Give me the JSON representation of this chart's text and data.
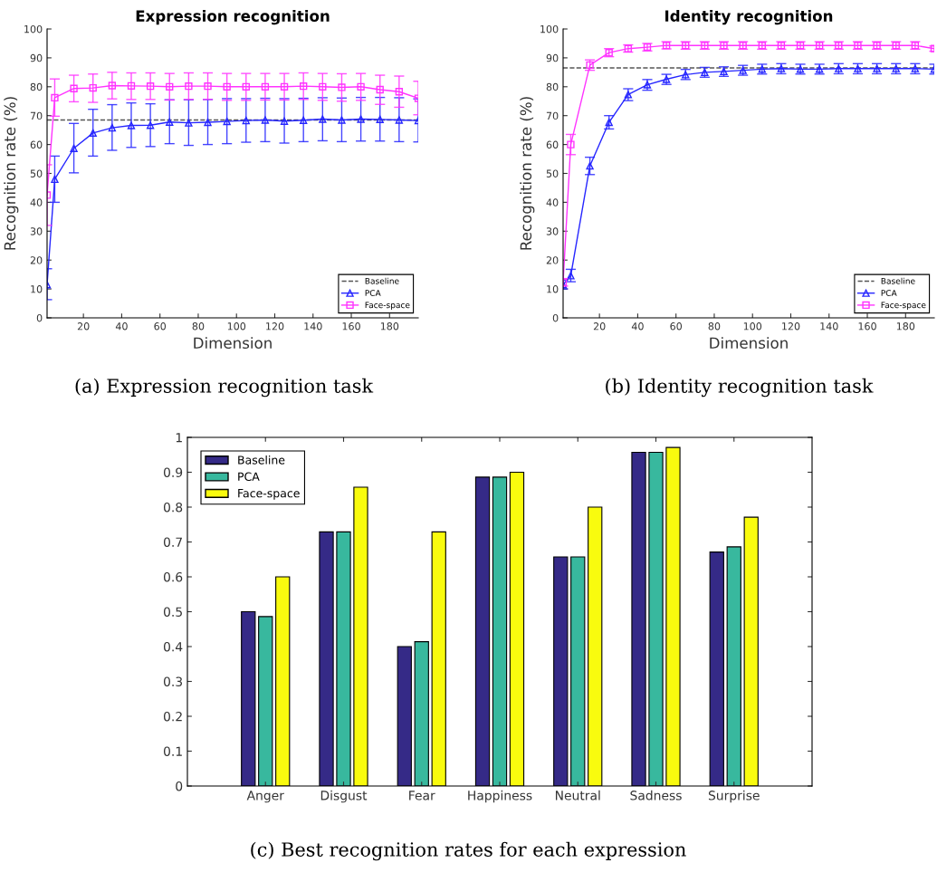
{
  "chart_data": [
    {
      "type": "line",
      "title": "Expression recognition",
      "xlabel": "Dimension",
      "ylabel": "Recognition rate (%)",
      "x": [
        1,
        5,
        15,
        25,
        35,
        45,
        55,
        65,
        75,
        85,
        95,
        105,
        115,
        125,
        135,
        145,
        155,
        165,
        175,
        185,
        195
      ],
      "xlim": [
        1,
        195
      ],
      "xticks": [
        20,
        40,
        60,
        80,
        100,
        120,
        140,
        160,
        180
      ],
      "ylim": [
        0,
        100
      ],
      "yticks": [
        0,
        10,
        20,
        30,
        40,
        50,
        60,
        70,
        80,
        90,
        100
      ],
      "grid": false,
      "legend": "bottom right",
      "annotations": [
        "(a) Expression recognition task"
      ],
      "ref_lines": [
        {
          "axis": "y",
          "value": 68.5,
          "label": "Baseline",
          "color": "#555555",
          "line_style": "dashed"
        }
      ],
      "series": [
        {
          "name": "PCA",
          "color": "#2626ff",
          "line_style": "solid",
          "marker": "triangle",
          "values": [
            11.5,
            48,
            58.7,
            64,
            65.8,
            66.6,
            66.7,
            67.8,
            67.5,
            67.7,
            68,
            68.3,
            68.5,
            68.1,
            68.4,
            68.8,
            68.5,
            68.8,
            68.7,
            68.5,
            68.3
          ],
          "errors": [
            [
              6.3,
              17
            ],
            [
              40,
              56
            ],
            [
              50.2,
              67.3
            ],
            [
              56,
              72.2
            ],
            [
              58,
              73.8
            ],
            [
              59,
              74.4
            ],
            [
              59.3,
              74.1
            ],
            [
              60.3,
              75.5
            ],
            [
              59.7,
              75.5
            ],
            [
              60,
              75.6
            ],
            [
              60.3,
              75.9
            ],
            [
              60.8,
              75.9
            ],
            [
              61,
              76
            ],
            [
              60.5,
              75.9
            ],
            [
              61,
              76
            ],
            [
              61.3,
              76.2
            ],
            [
              61,
              76.1
            ],
            [
              61.2,
              76.3
            ],
            [
              61.2,
              76.3
            ],
            [
              61,
              76.2
            ],
            [
              60.9,
              75.8
            ]
          ]
        },
        {
          "name": "Face-space",
          "color": "#ff33ff",
          "line_style": "solid",
          "marker": "square",
          "values": [
            42.5,
            76.2,
            79.4,
            79.6,
            80.4,
            80.3,
            80.2,
            80,
            80.2,
            80.2,
            80,
            80,
            80,
            80,
            80.2,
            80,
            79.8,
            80,
            79,
            78.3,
            76
          ],
          "errors": [
            [
              32,
              53
            ],
            [
              69.8,
              82.7
            ],
            [
              74.8,
              84
            ],
            [
              74.6,
              84.4
            ],
            [
              75.8,
              85
            ],
            [
              75.6,
              84.8
            ],
            [
              75.6,
              84.8
            ],
            [
              75.4,
              84.6
            ],
            [
              75.6,
              84.8
            ],
            [
              75.6,
              84.8
            ],
            [
              75.3,
              84.6
            ],
            [
              75.3,
              84.6
            ],
            [
              75.4,
              84.6
            ],
            [
              75.4,
              84.6
            ],
            [
              75.6,
              84.8
            ],
            [
              75.3,
              84.6
            ],
            [
              75,
              84.5
            ],
            [
              75.3,
              84.6
            ],
            [
              73.9,
              84
            ],
            [
              72.9,
              83.7
            ],
            [
              70.3,
              81.9
            ]
          ]
        }
      ]
    },
    {
      "type": "line",
      "title": "Identity recognition",
      "xlabel": "Dimension",
      "ylabel": "Recognition rate (%)",
      "x": [
        1,
        5,
        15,
        25,
        35,
        45,
        55,
        65,
        75,
        85,
        95,
        105,
        115,
        125,
        135,
        145,
        155,
        165,
        175,
        185,
        195
      ],
      "xlim": [
        1,
        195
      ],
      "xticks": [
        20,
        40,
        60,
        80,
        100,
        120,
        140,
        160,
        180
      ],
      "ylim": [
        0,
        100
      ],
      "yticks": [
        0,
        10,
        20,
        30,
        40,
        50,
        60,
        70,
        80,
        90,
        100
      ],
      "grid": false,
      "legend": "bottom right",
      "annotations": [
        "(b) Identity recognition task"
      ],
      "ref_lines": [
        {
          "axis": "y",
          "value": 86.5,
          "label": "Baseline",
          "color": "#555555",
          "line_style": "dashed"
        }
      ],
      "series": [
        {
          "name": "PCA",
          "color": "#2626ff",
          "line_style": "solid",
          "marker": "triangle",
          "values": [
            11.5,
            14.6,
            52.6,
            67.7,
            77.3,
            80.7,
            82.6,
            84.2,
            85,
            85.3,
            85.7,
            86.1,
            86.3,
            86.1,
            86.1,
            86.3,
            86.3,
            86.3,
            86.3,
            86.3,
            86.1
          ],
          "errors": [
            [
              10,
              13
            ],
            [
              12.5,
              16.8
            ],
            [
              49.6,
              55.6
            ],
            [
              65.4,
              70
            ],
            [
              75.2,
              79.3
            ],
            [
              78.8,
              82.5
            ],
            [
              80.8,
              84.3
            ],
            [
              82.5,
              86
            ],
            [
              83.3,
              86.7
            ],
            [
              83.6,
              86.9
            ],
            [
              84,
              87.4
            ],
            [
              84.4,
              87.8
            ],
            [
              84.5,
              88
            ],
            [
              84.4,
              87.8
            ],
            [
              84.4,
              87.8
            ],
            [
              84.5,
              88
            ],
            [
              84.5,
              88
            ],
            [
              84.5,
              88
            ],
            [
              84.5,
              88
            ],
            [
              84.5,
              88
            ],
            [
              84.4,
              87.8
            ]
          ]
        },
        {
          "name": "Face-space",
          "color": "#ff33ff",
          "line_style": "solid",
          "marker": "square",
          "values": [
            12.3,
            60,
            87.5,
            91.8,
            93.2,
            93.7,
            94.3,
            94.3,
            94.3,
            94.3,
            94.3,
            94.3,
            94.3,
            94.3,
            94.3,
            94.3,
            94.3,
            94.3,
            94.3,
            94.3,
            93.2
          ],
          "errors": [
            [
              11,
              13.6
            ],
            [
              56.5,
              63.5
            ],
            [
              85.7,
              89.3
            ],
            [
              90.4,
              93.2
            ],
            [
              92,
              94.5
            ],
            [
              92.4,
              95
            ],
            [
              93.1,
              95.6
            ],
            [
              93,
              95.6
            ],
            [
              93,
              95.6
            ],
            [
              93,
              95.6
            ],
            [
              93,
              95.6
            ],
            [
              93,
              95.6
            ],
            [
              93,
              95.6
            ],
            [
              93,
              95.6
            ],
            [
              93,
              95.6
            ],
            [
              93,
              95.6
            ],
            [
              93,
              95.6
            ],
            [
              93,
              95.6
            ],
            [
              93,
              95.6
            ],
            [
              93,
              95.6
            ],
            [
              92.3,
              94.1
            ]
          ]
        }
      ]
    },
    {
      "type": "bar",
      "categories": [
        "Anger",
        "Disgust",
        "Fear",
        "Happiness",
        "Neutral",
        "Sadness",
        "Surprise"
      ],
      "ylim": [
        0,
        1
      ],
      "yticks": [
        0,
        0.1,
        0.2,
        0.3,
        0.4,
        0.5,
        0.6,
        0.7,
        0.8,
        0.9,
        1
      ],
      "grid": false,
      "legend": "top left",
      "annotations": [
        "(c) Best recognition rates for each expression"
      ],
      "series": [
        {
          "name": "Baseline",
          "color": "#352a87",
          "values": [
            0.5,
            0.729,
            0.4,
            0.886,
            0.657,
            0.957,
            0.671
          ]
        },
        {
          "name": "PCA",
          "color": "#38b89e",
          "values": [
            0.486,
            0.729,
            0.414,
            0.886,
            0.657,
            0.957,
            0.686
          ]
        },
        {
          "name": "Face-space",
          "color": "#f9fb0e",
          "values": [
            0.6,
            0.857,
            0.729,
            0.9,
            0.8,
            0.971,
            0.771
          ]
        }
      ]
    }
  ]
}
